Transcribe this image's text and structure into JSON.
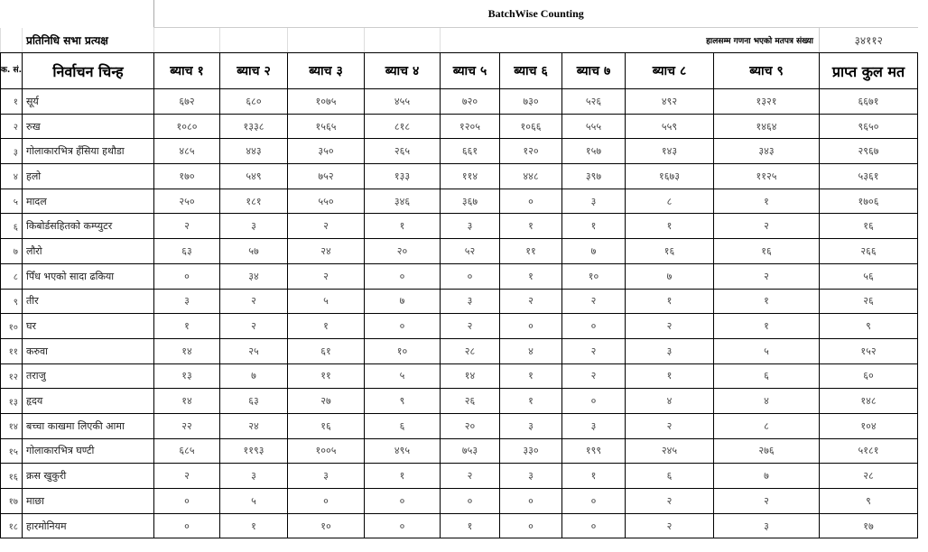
{
  "title": "BatchWise Counting",
  "subheader": {
    "label": "प्रतिनिधि सभा प्रत्यक्ष",
    "counted_label": "हालसम्म गणना भएको मतपत्र संख्या",
    "counted_value": "३४११२"
  },
  "columns": [
    "क. सं.",
    "निर्वाचन चिन्ह",
    "ब्याच १",
    "ब्याच २",
    "ब्याच ३",
    "ब्याच ४",
    "ब्याच ५",
    "ब्याच ६",
    "ब्याच ७",
    "ब्याच ८",
    "ब्याच ९",
    "प्राप्त कुल मत"
  ],
  "rows": [
    [
      "१",
      "सूर्य",
      "६७२",
      "६८०",
      "१०७५",
      "४५५",
      "७२०",
      "७३०",
      "५२६",
      "४९२",
      "१३२१",
      "६६७१"
    ],
    [
      "२",
      "रुख",
      "१०८०",
      "१३३८",
      "१५६५",
      "८१८",
      "१२०५",
      "१०६६",
      "५५५",
      "५५९",
      "१४६४",
      "९६५०"
    ],
    [
      "३",
      "गोलाकारभित्र हँसिया हथौडा",
      "४८५",
      "४४३",
      "३५०",
      "२६५",
      "६६१",
      "१२०",
      "१५७",
      "१४३",
      "३४३",
      "२९६७"
    ],
    [
      "४",
      "हलो",
      "१७०",
      "५४९",
      "७५२",
      "१३३",
      "११४",
      "४४८",
      "३९७",
      "१६७३",
      "११२५",
      "५३६१"
    ],
    [
      "५",
      "मादल",
      "२५०",
      "१८१",
      "५५०",
      "३४६",
      "३६७",
      "०",
      "३",
      "८",
      "१",
      "१७०६"
    ],
    [
      "६",
      "किबोर्डसहितको कम्प्युटर",
      "२",
      "३",
      "२",
      "१",
      "३",
      "१",
      "१",
      "१",
      "२",
      "१६"
    ],
    [
      "७",
      "लौरो",
      "६३",
      "५७",
      "२४",
      "२०",
      "५२",
      "११",
      "७",
      "१६",
      "१६",
      "२६६"
    ],
    [
      "८",
      "पिँध भएको सादा ढकिया",
      "०",
      "३४",
      "२",
      "०",
      "०",
      "१",
      "१०",
      "७",
      "२",
      "५६"
    ],
    [
      "९",
      "तीर",
      "३",
      "२",
      "५",
      "७",
      "३",
      "२",
      "२",
      "१",
      "१",
      "२६"
    ],
    [
      "१०",
      "घर",
      "१",
      "२",
      "१",
      "०",
      "२",
      "०",
      "०",
      "२",
      "१",
      "९"
    ],
    [
      "११",
      "करुवा",
      "१४",
      "२५",
      "६१",
      "१०",
      "२८",
      "४",
      "२",
      "३",
      "५",
      "१५२"
    ],
    [
      "१२",
      "तराजु",
      "१३",
      "७",
      "११",
      "५",
      "१४",
      "१",
      "२",
      "१",
      "६",
      "६०"
    ],
    [
      "१३",
      "हृदय",
      "१४",
      "६३",
      "२७",
      "९",
      "२६",
      "१",
      "०",
      "४",
      "४",
      "१४८"
    ],
    [
      "१४",
      "बच्चा काखमा लिएकी आमा",
      "२२",
      "२४",
      "१६",
      "६",
      "२०",
      "३",
      "३",
      "२",
      "८",
      "१०४"
    ],
    [
      "१५",
      "गोलाकारभित्र घण्टी",
      "६८५",
      "११९३",
      "१००५",
      "४९५",
      "७५३",
      "३३०",
      "१९९",
      "२४५",
      "२७६",
      "५१८१"
    ],
    [
      "१६",
      "क्रस खुकुरी",
      "२",
      "३",
      "३",
      "१",
      "२",
      "३",
      "१",
      "६",
      "७",
      "२८"
    ],
    [
      "१७",
      "माछा",
      "०",
      "५",
      "०",
      "०",
      "०",
      "०",
      "०",
      "२",
      "२",
      "९"
    ],
    [
      "१८",
      "हारमोनियम",
      "०",
      "१",
      "१०",
      "०",
      "१",
      "०",
      "०",
      "२",
      "३",
      "१७"
    ]
  ]
}
